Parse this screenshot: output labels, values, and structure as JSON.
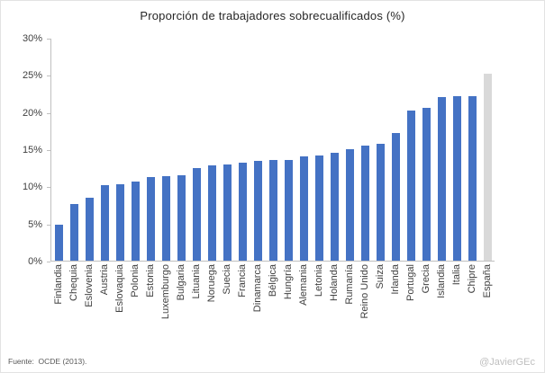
{
  "chart_data": {
    "type": "bar",
    "title": "Proporción de trabajadores sobrecualificados (%)",
    "categories": [
      "Finlandia",
      "Chequia",
      "Eslovenia",
      "Austria",
      "Eslovaquia",
      "Polonia",
      "Estonia",
      "Luxemburgo",
      "Bulgaria",
      "Lituania",
      "Noruega",
      "Suecia",
      "Francia",
      "Dinamarca",
      "Bélgica",
      "Hungría",
      "Alemania",
      "Letonia",
      "Holanda",
      "Rumanía",
      "Reino Unido",
      "Suiza",
      "Irlanda",
      "Portugal",
      "Grecia",
      "Islandia",
      "Italia",
      "Chipre",
      "España"
    ],
    "values": [
      4.8,
      7.6,
      8.5,
      10.2,
      10.3,
      10.7,
      11.3,
      11.4,
      11.5,
      12.5,
      12.8,
      13.0,
      13.2,
      13.4,
      13.5,
      13.6,
      14.0,
      14.2,
      14.5,
      15.0,
      15.5,
      15.7,
      17.2,
      20.2,
      20.6,
      22.0,
      22.2,
      22.2,
      25.2
    ],
    "xlabel": "",
    "ylabel": "",
    "ylim": [
      0,
      30
    ],
    "y_ticks": [
      "0%",
      "5%",
      "10%",
      "15%",
      "20%",
      "25%",
      "30%"
    ],
    "grid": false,
    "legend": false,
    "bar_color": "#4472C4",
    "highlight_category": "España",
    "highlight_color": "#D9D9D9",
    "axis_color": "#BFBFBF"
  },
  "footer": {
    "source": "Fuente:  OCDE (2013).",
    "credit": "@JavierGEc"
  }
}
